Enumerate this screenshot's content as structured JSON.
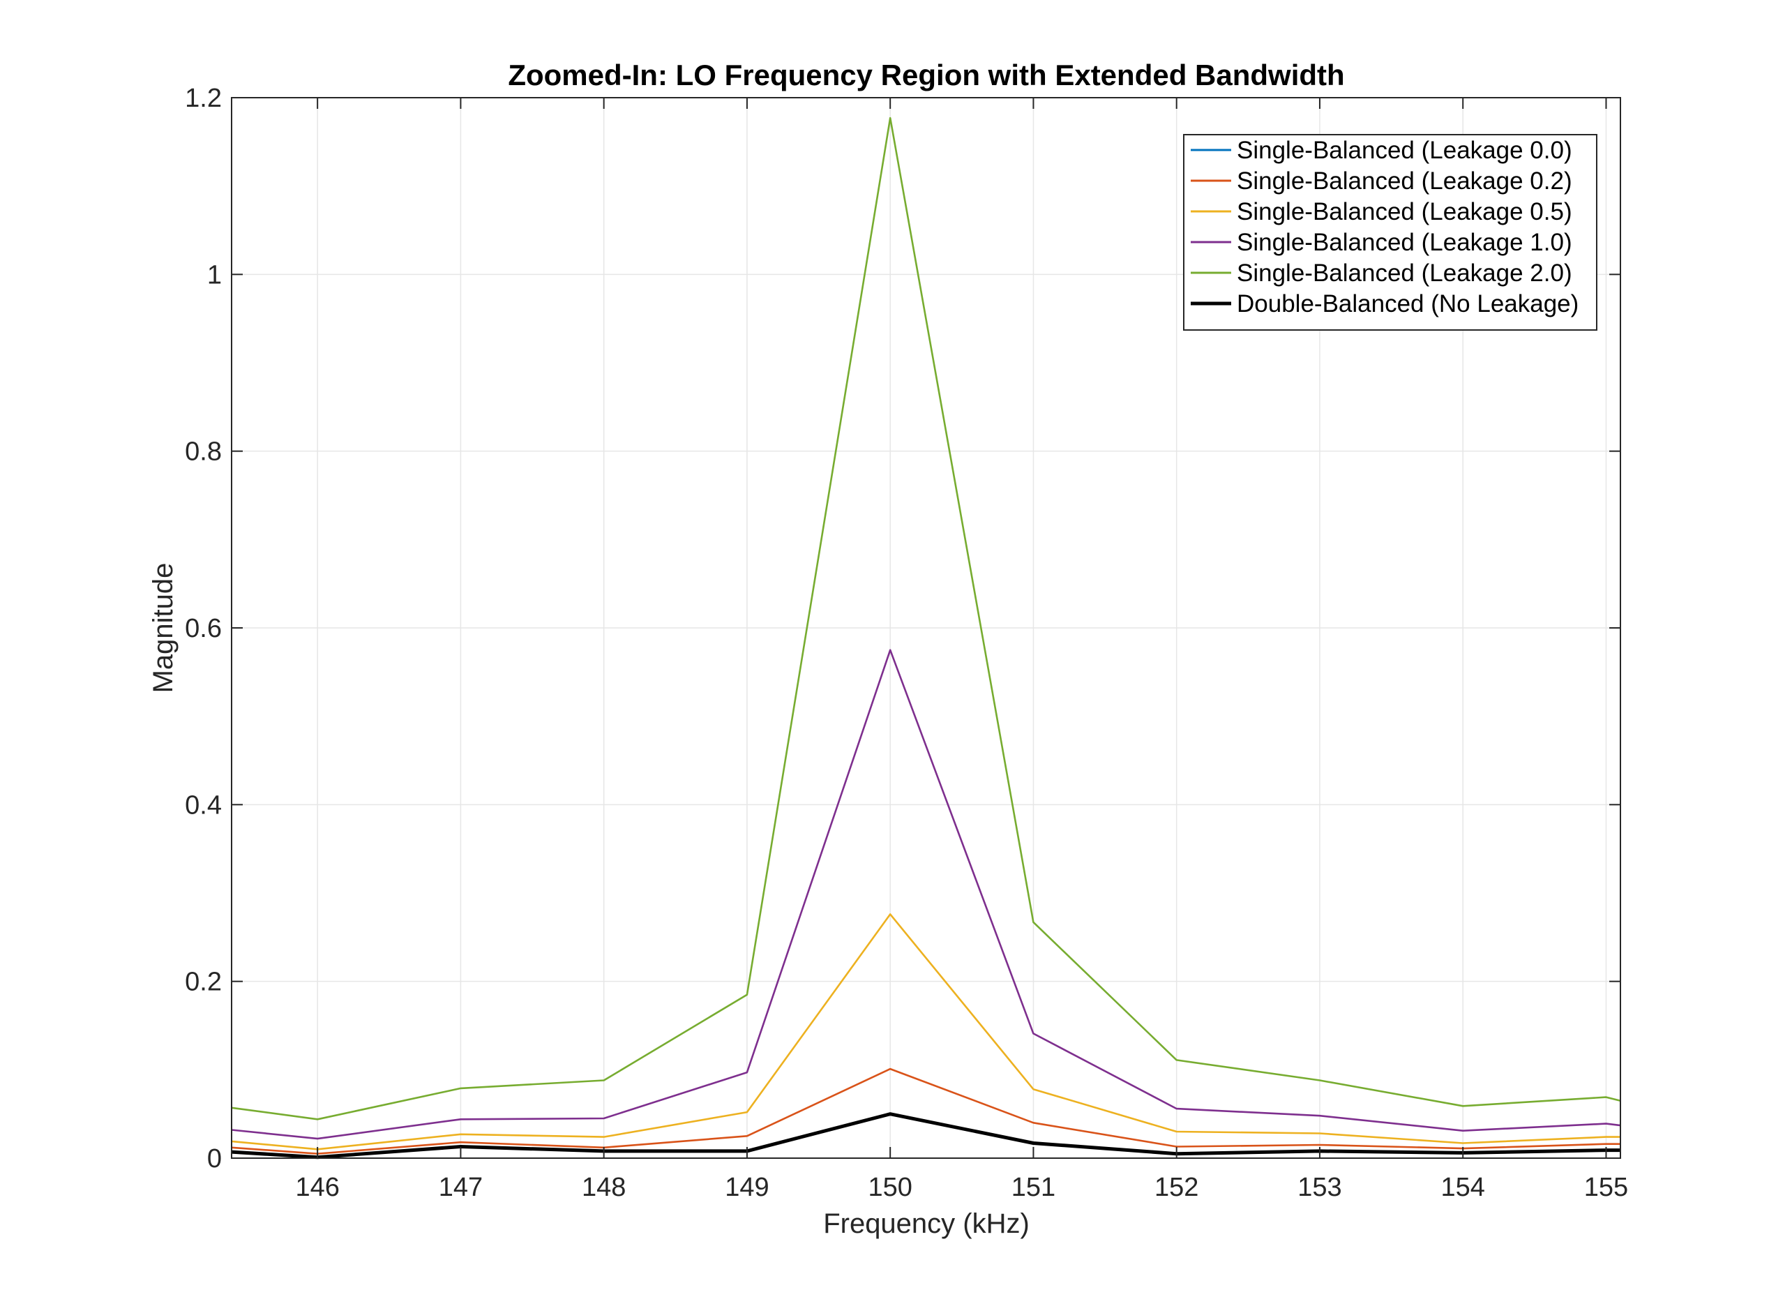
{
  "chart_data": {
    "type": "line",
    "title": "Zoomed-In: LO Frequency Region with Extended Bandwidth",
    "xlabel": "Frequency (kHz)",
    "ylabel": "Magnitude",
    "xlim": [
      145.4,
      155.1
    ],
    "ylim": [
      0,
      1.2
    ],
    "xticks": [
      146,
      147,
      148,
      149,
      150,
      151,
      152,
      153,
      154,
      155
    ],
    "yticks": [
      0,
      0.2,
      0.4,
      0.6,
      0.8,
      1,
      1.2
    ],
    "ytick_labels": [
      "0",
      "0.2",
      "0.4",
      "0.6",
      "0.8",
      "1",
      "1.2"
    ],
    "grid": true,
    "legend_position": "top-right",
    "x": [
      145.4,
      146,
      147,
      148,
      149,
      150,
      151,
      152,
      153,
      154,
      155,
      155.1
    ],
    "series": [
      {
        "name": "Single-Balanced (Leakage 0.0)",
        "color": "#0072BD",
        "values": [
          0.007,
          0.001,
          0.013,
          0.008,
          0.008,
          0.05,
          0.017,
          0.005,
          0.008,
          0.006,
          0.009,
          0.009
        ]
      },
      {
        "name": "Single-Balanced (Leakage 0.2)",
        "color": "#D95319",
        "values": [
          0.012,
          0.005,
          0.018,
          0.012,
          0.025,
          0.101,
          0.04,
          0.013,
          0.015,
          0.011,
          0.016,
          0.016
        ]
      },
      {
        "name": "Single-Balanced (Leakage 0.5)",
        "color": "#EDB120",
        "values": [
          0.019,
          0.01,
          0.027,
          0.024,
          0.052,
          0.276,
          0.078,
          0.03,
          0.028,
          0.017,
          0.024,
          0.024
        ]
      },
      {
        "name": "Single-Balanced (Leakage 1.0)",
        "color": "#7E2F8E",
        "values": [
          0.032,
          0.022,
          0.044,
          0.045,
          0.097,
          0.575,
          0.141,
          0.056,
          0.048,
          0.031,
          0.039,
          0.037
        ]
      },
      {
        "name": "Single-Balanced (Leakage 2.0)",
        "color": "#77AC30",
        "values": [
          0.057,
          0.044,
          0.079,
          0.088,
          0.185,
          1.177,
          0.267,
          0.111,
          0.088,
          0.059,
          0.069,
          0.065
        ]
      },
      {
        "name": "Double-Balanced (No Leakage)",
        "color": "#000000",
        "values": [
          0.007,
          0.001,
          0.013,
          0.008,
          0.008,
          0.05,
          0.017,
          0.005,
          0.008,
          0.006,
          0.009,
          0.009
        ]
      }
    ]
  }
}
